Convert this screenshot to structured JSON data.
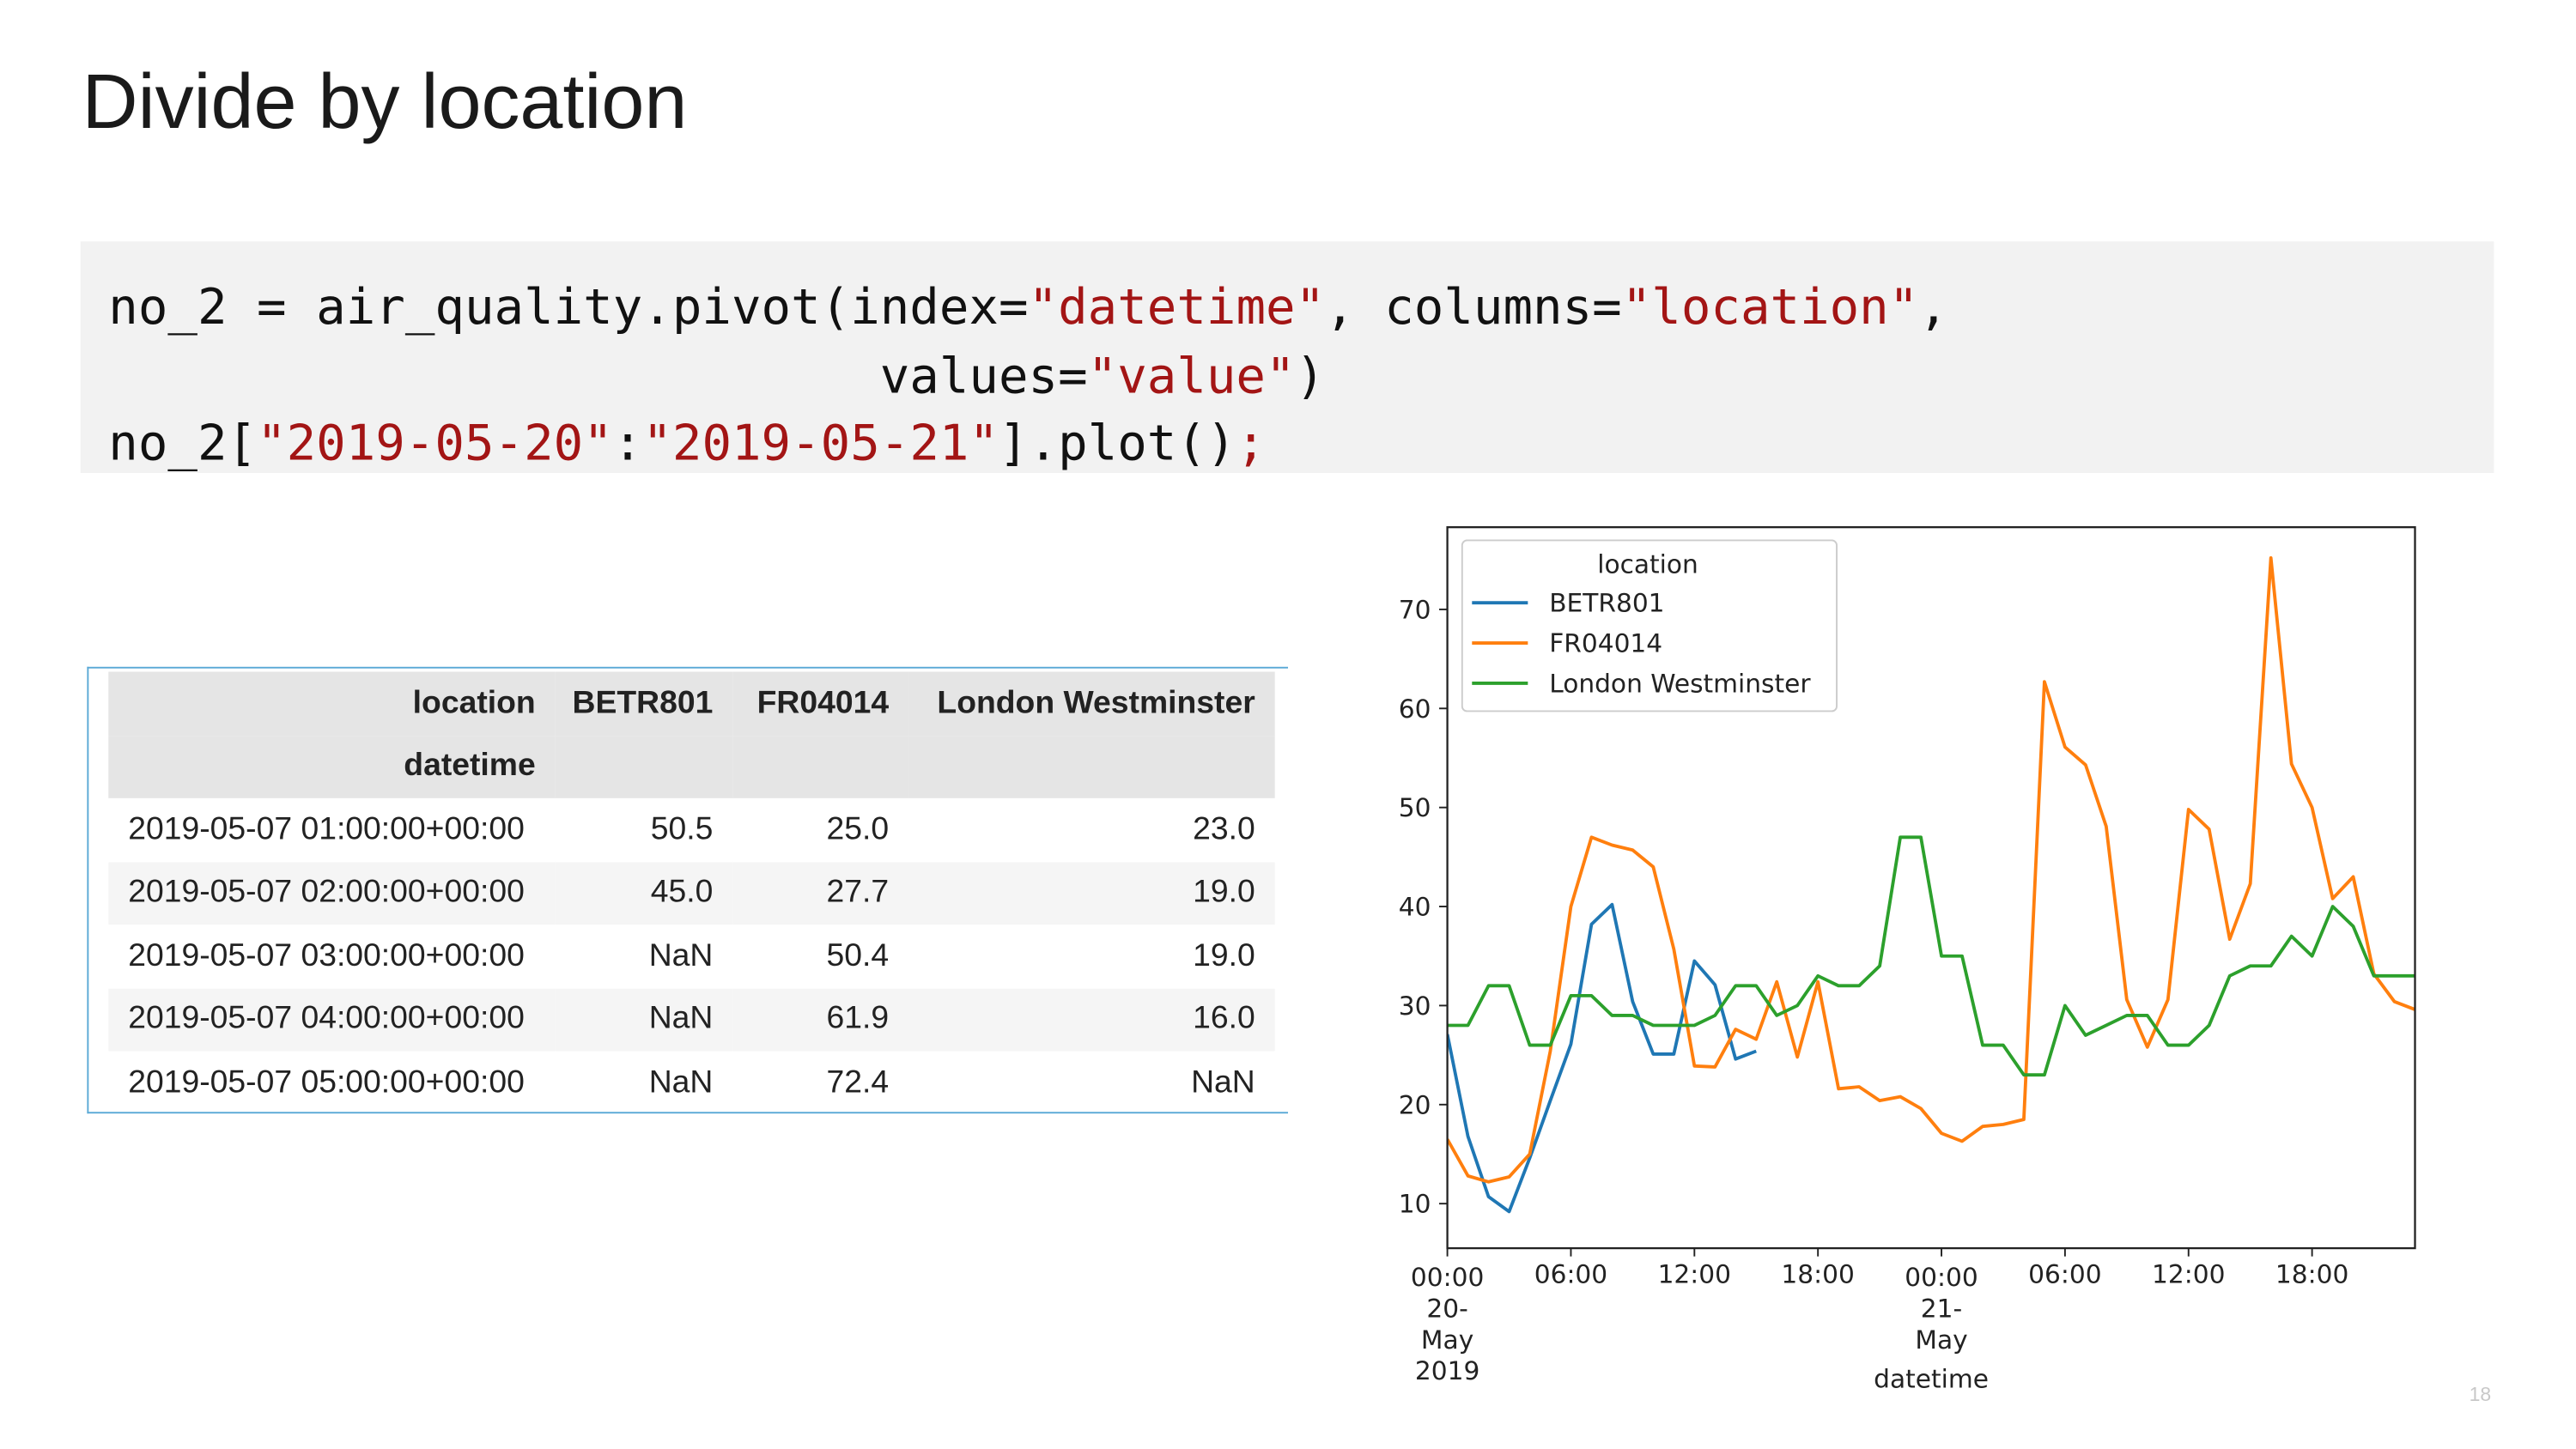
{
  "title": "Divide by location",
  "code": {
    "lines": [
      [
        {
          "text": "no_2 = air_quality.pivot(index=",
          "color": "#111111"
        },
        {
          "text": "\"datetime\"",
          "color": "#a31515"
        },
        {
          "text": ", columns=",
          "color": "#111111"
        },
        {
          "text": "\"location\"",
          "color": "#a31515"
        },
        {
          "text": ",",
          "color": "#111111"
        }
      ],
      [
        {
          "text": "                          values=",
          "color": "#111111"
        },
        {
          "text": "\"value\"",
          "color": "#a31515"
        },
        {
          "text": ")",
          "color": "#111111"
        }
      ],
      [
        {
          "text": "no_2[",
          "color": "#111111"
        },
        {
          "text": "\"2019-05-20\"",
          "color": "#a31515"
        },
        {
          "text": ":",
          "color": "#111111"
        },
        {
          "text": "\"2019-05-21\"",
          "color": "#a31515"
        },
        {
          "text": "].plot()",
          "color": "#111111"
        },
        {
          "text": ";",
          "color": "#a31515"
        }
      ]
    ]
  },
  "table": {
    "columns": [
      "location",
      "BETR801",
      "FR04014",
      "London Westminster"
    ],
    "index_name": "datetime",
    "rows": [
      [
        "2019-05-07 01:00:00+00:00",
        "50.5",
        "25.0",
        "23.0"
      ],
      [
        "2019-05-07 02:00:00+00:00",
        "45.0",
        "27.7",
        "19.0"
      ],
      [
        "2019-05-07 03:00:00+00:00",
        "NaN",
        "50.4",
        "19.0"
      ],
      [
        "2019-05-07 04:00:00+00:00",
        "NaN",
        "61.9",
        "16.0"
      ],
      [
        "2019-05-07 05:00:00+00:00",
        "NaN",
        "72.4",
        "NaN"
      ]
    ]
  },
  "chart_data": {
    "type": "line",
    "x_label": "datetime",
    "legend_title": "location",
    "legend": "upper left",
    "grid": false,
    "x": [
      "2019-05-20 00:00",
      "2019-05-20 01:00",
      "2019-05-20 02:00",
      "2019-05-20 03:00",
      "2019-05-20 04:00",
      "2019-05-20 05:00",
      "2019-05-20 06:00",
      "2019-05-20 07:00",
      "2019-05-20 08:00",
      "2019-05-20 09:00",
      "2019-05-20 10:00",
      "2019-05-20 11:00",
      "2019-05-20 12:00",
      "2019-05-20 13:00",
      "2019-05-20 14:00",
      "2019-05-20 15:00",
      "2019-05-20 16:00",
      "2019-05-20 17:00",
      "2019-05-20 18:00",
      "2019-05-20 19:00",
      "2019-05-20 20:00",
      "2019-05-20 21:00",
      "2019-05-20 22:00",
      "2019-05-20 23:00",
      "2019-05-21 00:00",
      "2019-05-21 01:00",
      "2019-05-21 02:00",
      "2019-05-21 03:00",
      "2019-05-21 04:00",
      "2019-05-21 05:00",
      "2019-05-21 06:00",
      "2019-05-21 07:00",
      "2019-05-21 08:00",
      "2019-05-21 09:00",
      "2019-05-21 10:00",
      "2019-05-21 11:00",
      "2019-05-21 12:00",
      "2019-05-21 13:00",
      "2019-05-21 14:00",
      "2019-05-21 15:00",
      "2019-05-21 16:00",
      "2019-05-21 17:00",
      "2019-05-21 18:00",
      "2019-05-21 19:00",
      "2019-05-21 20:00",
      "2019-05-21 21:00",
      "2019-05-21 22:00",
      "2019-05-21 23:00"
    ],
    "xlim": [
      "2019-05-20 00:00",
      "2019-05-21 23:00"
    ],
    "xticks": [
      {
        "value": "2019-05-20 00:00",
        "label": "00:00\n20-May\n2019"
      },
      {
        "value": "2019-05-20 06:00",
        "label": "06:00"
      },
      {
        "value": "2019-05-20 12:00",
        "label": "12:00"
      },
      {
        "value": "2019-05-20 18:00",
        "label": "18:00"
      },
      {
        "value": "2019-05-21 00:00",
        "label": "00:00\n21-May"
      },
      {
        "value": "2019-05-21 06:00",
        "label": "06:00"
      },
      {
        "value": "2019-05-21 12:00",
        "label": "12:00"
      },
      {
        "value": "2019-05-21 18:00",
        "label": "18:00"
      }
    ],
    "ylim": [
      5.5,
      78.3
    ],
    "yticks": [
      10,
      20,
      30,
      40,
      50,
      60,
      70
    ],
    "series": [
      {
        "name": "BETR801",
        "color": "#1f77b4",
        "values": [
          27.1,
          16.8,
          10.7,
          9.2,
          14.6,
          20.4,
          26.1,
          38.2,
          40.2,
          30.4,
          25.1,
          25.1,
          34.5,
          32.1,
          24.6,
          25.4,
          null,
          null,
          null,
          null,
          null,
          null,
          null,
          null,
          null,
          null,
          null,
          null,
          null,
          null,
          null,
          null,
          null,
          null,
          null,
          null,
          null,
          null,
          null,
          null,
          null,
          null,
          null,
          null,
          null,
          null,
          null,
          null
        ]
      },
      {
        "name": "FR04014",
        "color": "#ff7f0e",
        "values": [
          16.5,
          12.8,
          12.2,
          12.7,
          15.0,
          25.4,
          40.0,
          47.0,
          46.2,
          45.7,
          44.0,
          35.7,
          23.9,
          23.8,
          27.6,
          26.6,
          32.4,
          24.8,
          32.4,
          21.6,
          21.8,
          20.4,
          20.8,
          19.6,
          17.1,
          16.3,
          17.8,
          18.0,
          18.5,
          62.7,
          56.1,
          54.3,
          48.1,
          30.6,
          25.8,
          30.6,
          49.8,
          47.8,
          36.7,
          42.3,
          75.2,
          54.4,
          50.0,
          40.8,
          43.0,
          33.2,
          30.4,
          29.6
        ]
      },
      {
        "name": "London Westminster",
        "color": "#2ca02c",
        "values": [
          28,
          28,
          32,
          32,
          26,
          26,
          31,
          31,
          29,
          29,
          28,
          28,
          28,
          29,
          32,
          32,
          29,
          30,
          33,
          32,
          32,
          34,
          47,
          47,
          35,
          35,
          26,
          26,
          23,
          23,
          30,
          27,
          28,
          29,
          29,
          26,
          26,
          28,
          33,
          34,
          34,
          37,
          35,
          40,
          38,
          33,
          33,
          33
        ]
      }
    ]
  },
  "page_number": "18"
}
